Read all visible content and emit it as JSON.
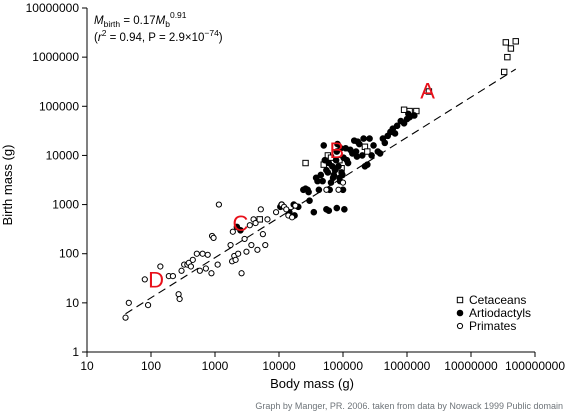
{
  "chart_data": {
    "type": "scatter",
    "scale": {
      "x": "log",
      "y": "log"
    },
    "xlabel": "Body mass (g)",
    "ylabel": "Birth mass (g)",
    "xlim": [
      10,
      100000000
    ],
    "ylim": [
      1,
      10000000
    ],
    "x_ticks": [
      "10",
      "100",
      "1000",
      "10000",
      "100000",
      "1000000",
      "10000000",
      "100000000"
    ],
    "y_ticks": [
      "1",
      "10",
      "100",
      "1000",
      "10000",
      "100000",
      "1000000",
      "10000000"
    ],
    "grid": false,
    "legend_position": "bottom-right",
    "equation": {
      "main": "M",
      "main_sub": "birth",
      "equals": " = 0.17",
      "var": "M",
      "var_sub": "b",
      "exp": "0.91",
      "stats_open": "(",
      "r": "r",
      "r_exp": "2",
      "stats_rest": " = 0.94, P = 2.9×10",
      "p_exp": "−74",
      "stats_close": ")"
    },
    "fit_line": {
      "style": "dashed",
      "x": [
        40,
        50000000
      ],
      "y": [
        6,
        570000
      ]
    },
    "series": [
      {
        "name": "Cetaceans",
        "marker": "open-square",
        "points": [
          [
            35000000,
            2000000
          ],
          [
            50000000,
            2100000
          ],
          [
            42000000,
            1500000
          ],
          [
            37000000,
            1000000
          ],
          [
            33000000,
            500000
          ],
          [
            2200000,
            200000
          ],
          [
            1100000,
            80000
          ],
          [
            900000,
            85000
          ],
          [
            1400000,
            80000
          ],
          [
            220000,
            15000
          ],
          [
            240000,
            12000
          ],
          [
            26000,
            7000
          ],
          [
            58000,
            10000
          ],
          [
            65000,
            9000
          ],
          [
            50000,
            6500
          ],
          [
            88000,
            8000
          ],
          [
            95000,
            5500
          ],
          [
            5000,
            500
          ]
        ]
      },
      {
        "name": "Artiodactyls",
        "marker": "filled-circle",
        "points": [
          [
            11000,
            1000
          ],
          [
            10500,
            900
          ],
          [
            14500,
            700
          ],
          [
            17000,
            1000
          ],
          [
            20000,
            900
          ],
          [
            17500,
            600
          ],
          [
            24000,
            2000
          ],
          [
            26000,
            2100
          ],
          [
            28000,
            2000
          ],
          [
            29000,
            1800
          ],
          [
            30000,
            1200
          ],
          [
            35000,
            700
          ],
          [
            38000,
            3500
          ],
          [
            40000,
            3000
          ],
          [
            42000,
            2000
          ],
          [
            45000,
            4000
          ],
          [
            48000,
            3000
          ],
          [
            50000,
            16000
          ],
          [
            52000,
            8000
          ],
          [
            55000,
            5000
          ],
          [
            58000,
            4500
          ],
          [
            60000,
            7000
          ],
          [
            62000,
            2000
          ],
          [
            65000,
            2800
          ],
          [
            68000,
            6000
          ],
          [
            70000,
            3500
          ],
          [
            72000,
            4000
          ],
          [
            75000,
            5000
          ],
          [
            78000,
            8000
          ],
          [
            80000,
            12000
          ],
          [
            82000,
            17000
          ],
          [
            85000,
            6000
          ],
          [
            88000,
            3500
          ],
          [
            90000,
            3000
          ],
          [
            92000,
            14000
          ],
          [
            95000,
            4500
          ],
          [
            98000,
            4000
          ],
          [
            100000,
            2000
          ],
          [
            102000,
            9000
          ],
          [
            105000,
            800
          ],
          [
            110000,
            14000
          ],
          [
            115000,
            8000
          ],
          [
            120000,
            7000
          ],
          [
            130000,
            13000
          ],
          [
            140000,
            11000
          ],
          [
            150000,
            20000
          ],
          [
            160000,
            12000
          ],
          [
            165000,
            9500
          ],
          [
            170000,
            19000
          ],
          [
            180000,
            17000
          ],
          [
            200000,
            10000
          ],
          [
            210000,
            22000
          ],
          [
            220000,
            6000
          ],
          [
            240000,
            6500
          ],
          [
            260000,
            22000
          ],
          [
            280000,
            10000
          ],
          [
            300000,
            16000
          ],
          [
            350000,
            12000
          ],
          [
            380000,
            11000
          ],
          [
            420000,
            22000
          ],
          [
            450000,
            18000
          ],
          [
            500000,
            25000
          ],
          [
            550000,
            30000
          ],
          [
            600000,
            35000
          ],
          [
            650000,
            28000
          ],
          [
            700000,
            40000
          ],
          [
            800000,
            50000
          ],
          [
            900000,
            45000
          ],
          [
            1000000,
            55000
          ],
          [
            1100000,
            60000
          ],
          [
            1050000,
            70000
          ],
          [
            1300000,
            65000
          ],
          [
            2500,
            300
          ],
          [
            2200,
            350
          ],
          [
            55000,
            800
          ],
          [
            60000,
            750
          ],
          [
            80000,
            850
          ]
        ]
      },
      {
        "name": "Primates",
        "marker": "open-circle",
        "points": [
          [
            40,
            5
          ],
          [
            45,
            10
          ],
          [
            80,
            30
          ],
          [
            90,
            9
          ],
          [
            140,
            55
          ],
          [
            190,
            35
          ],
          [
            220,
            35
          ],
          [
            270,
            15
          ],
          [
            280,
            12
          ],
          [
            300,
            45
          ],
          [
            330,
            60
          ],
          [
            370,
            60
          ],
          [
            390,
            65
          ],
          [
            420,
            55
          ],
          [
            450,
            75
          ],
          [
            520,
            100
          ],
          [
            580,
            45
          ],
          [
            640,
            100
          ],
          [
            720,
            50
          ],
          [
            770,
            95
          ],
          [
            880,
            40
          ],
          [
            900,
            230
          ],
          [
            950,
            210
          ],
          [
            1100,
            60
          ],
          [
            1150,
            1000
          ],
          [
            1750,
            150
          ],
          [
            1850,
            70
          ],
          [
            1900,
            280
          ],
          [
            2000,
            90
          ],
          [
            2100,
            75
          ],
          [
            2300,
            100
          ],
          [
            2600,
            40
          ],
          [
            2900,
            200
          ],
          [
            3100,
            110
          ],
          [
            3500,
            380
          ],
          [
            3700,
            150
          ],
          [
            4000,
            500
          ],
          [
            4300,
            420
          ],
          [
            4600,
            120
          ],
          [
            5200,
            800
          ],
          [
            5600,
            250
          ],
          [
            6100,
            150
          ],
          [
            6600,
            500
          ],
          [
            9000,
            700
          ],
          [
            11000,
            1000
          ],
          [
            12000,
            900
          ],
          [
            13000,
            800
          ],
          [
            14000,
            600
          ],
          [
            16000,
            550
          ],
          [
            18000,
            950
          ],
          [
            55000,
            2000
          ],
          [
            85000,
            2000
          ],
          [
            100000,
            2800
          ]
        ]
      }
    ],
    "annotations": [
      {
        "label": "A",
        "x": 2100000,
        "y": 210000
      },
      {
        "label": "B",
        "x": 80000,
        "y": 13000
      },
      {
        "label": "C",
        "x": 2500,
        "y": 420
      },
      {
        "label": "D",
        "x": 120,
        "y": 30
      }
    ]
  },
  "credit": "Graph by Manger, PR. 2006. taken from data by Nowack 1999  Public domain",
  "colors": {
    "annotation": "#e8101a",
    "credit": "#6e7479",
    "ink": "#000000"
  }
}
